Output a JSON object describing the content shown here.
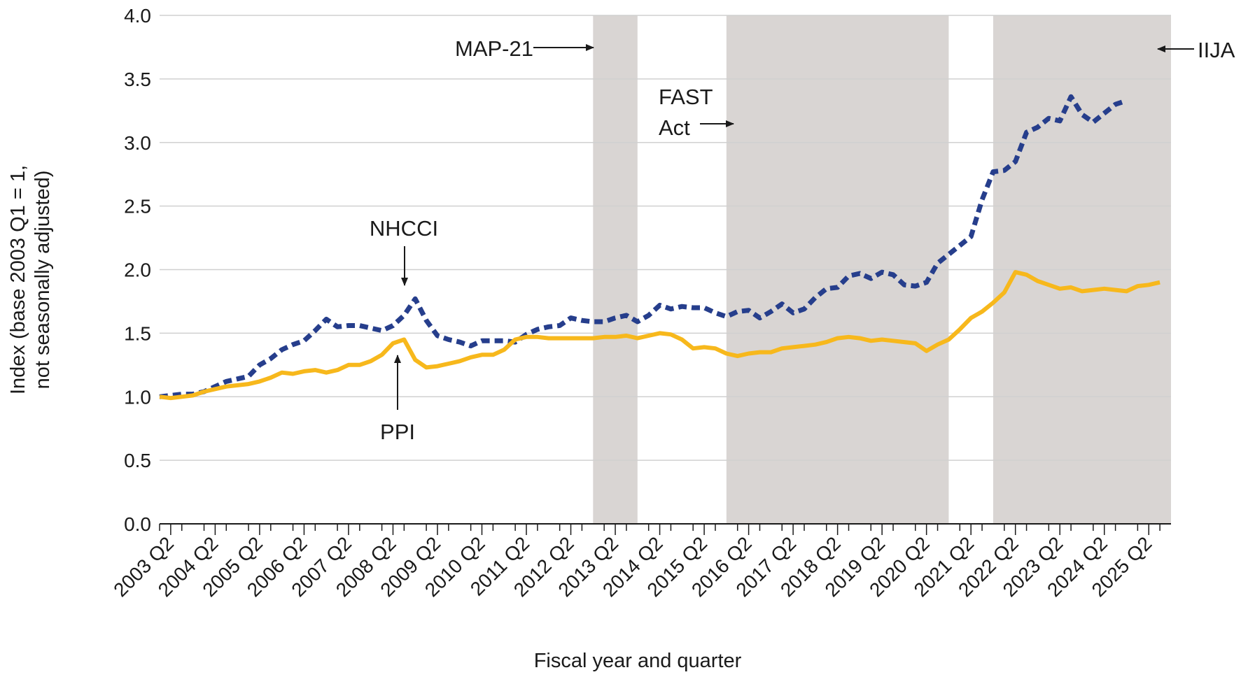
{
  "chart_data": {
    "type": "line",
    "xlabel": "Fiscal year and quarter",
    "ylabel_line1": "Index (base 2003 Q1 = 1,",
    "ylabel_line2": "not seasonally adjusted)",
    "ylim": [
      0,
      4
    ],
    "yticks": [
      "0.0",
      "0.5",
      "1.0",
      "1.5",
      "2.0",
      "2.5",
      "3.0",
      "3.5",
      "4.0"
    ],
    "grid": "horizontal",
    "xticks": [
      "2003 Q2",
      "2004 Q2",
      "2005 Q2",
      "2006 Q2",
      "2007 Q2",
      "2008 Q2",
      "2009 Q2",
      "2010 Q2",
      "2011 Q2",
      "2012 Q2",
      "2013 Q2",
      "2014 Q2",
      "2015 Q2",
      "2016 Q2",
      "2017 Q2",
      "2018 Q2",
      "2019 Q2",
      "2020 Q2",
      "2021 Q2",
      "2022 Q2",
      "2023 Q2",
      "2024 Q2",
      "2025 Q2"
    ],
    "x_start": "2003 Q1",
    "x_end": "2025 Q4",
    "series": [
      {
        "name": "NHCCI",
        "color": "#263e8c",
        "style": "dashed",
        "values": [
          1.0,
          1.01,
          1.02,
          1.02,
          1.04,
          1.08,
          1.12,
          1.14,
          1.16,
          1.25,
          1.3,
          1.37,
          1.41,
          1.44,
          1.52,
          1.61,
          1.55,
          1.56,
          1.56,
          1.54,
          1.52,
          1.56,
          1.64,
          1.77,
          1.6,
          1.48,
          1.45,
          1.43,
          1.4,
          1.44,
          1.44,
          1.44,
          1.43,
          1.49,
          1.53,
          1.55,
          1.56,
          1.62,
          1.6,
          1.59,
          1.59,
          1.62,
          1.64,
          1.59,
          1.64,
          1.72,
          1.69,
          1.71,
          1.7,
          1.7,
          1.66,
          1.63,
          1.67,
          1.68,
          1.62,
          1.67,
          1.73,
          1.66,
          1.69,
          1.78,
          1.85,
          1.86,
          1.95,
          1.97,
          1.93,
          1.98,
          1.96,
          1.88,
          1.87,
          1.9,
          2.05,
          2.12,
          2.19,
          2.26,
          2.55,
          2.77,
          2.78,
          2.85,
          3.08,
          3.12,
          3.19,
          3.17,
          3.36,
          3.22,
          3.16,
          3.23,
          3.3,
          3.33
        ]
      },
      {
        "name": "PPI",
        "color": "#f7b81c",
        "style": "solid",
        "values": [
          1.0,
          0.99,
          1.0,
          1.01,
          1.04,
          1.06,
          1.08,
          1.09,
          1.1,
          1.12,
          1.15,
          1.19,
          1.18,
          1.2,
          1.21,
          1.19,
          1.21,
          1.25,
          1.25,
          1.28,
          1.33,
          1.42,
          1.45,
          1.29,
          1.23,
          1.24,
          1.26,
          1.28,
          1.31,
          1.33,
          1.33,
          1.37,
          1.45,
          1.47,
          1.47,
          1.46,
          1.46,
          1.46,
          1.46,
          1.46,
          1.47,
          1.47,
          1.48,
          1.46,
          1.48,
          1.5,
          1.49,
          1.45,
          1.38,
          1.39,
          1.38,
          1.34,
          1.32,
          1.34,
          1.35,
          1.35,
          1.38,
          1.39,
          1.4,
          1.41,
          1.43,
          1.46,
          1.47,
          1.46,
          1.44,
          1.45,
          1.44,
          1.43,
          1.42,
          1.36,
          1.41,
          1.45,
          1.53,
          1.62,
          1.67,
          1.74,
          1.82,
          1.98,
          1.96,
          1.91,
          1.88,
          1.85,
          1.86,
          1.83,
          1.84,
          1.85,
          1.84,
          1.83,
          1.87,
          1.88,
          1.9
        ]
      }
    ],
    "shaded_periods": [
      {
        "start": "2012 Q4",
        "end": "2013 Q4"
      },
      {
        "start": "2015 Q4",
        "end": "2020 Q4"
      },
      {
        "start": "2021 Q4",
        "end": "2025 Q4"
      }
    ],
    "shade_color": "#d9d5d3",
    "annotations": {
      "map21": "MAP-21",
      "fast_line1": "FAST",
      "fast_line2": "Act",
      "iija": "IIJA",
      "nhcci": "NHCCI",
      "ppi": "PPI"
    }
  }
}
